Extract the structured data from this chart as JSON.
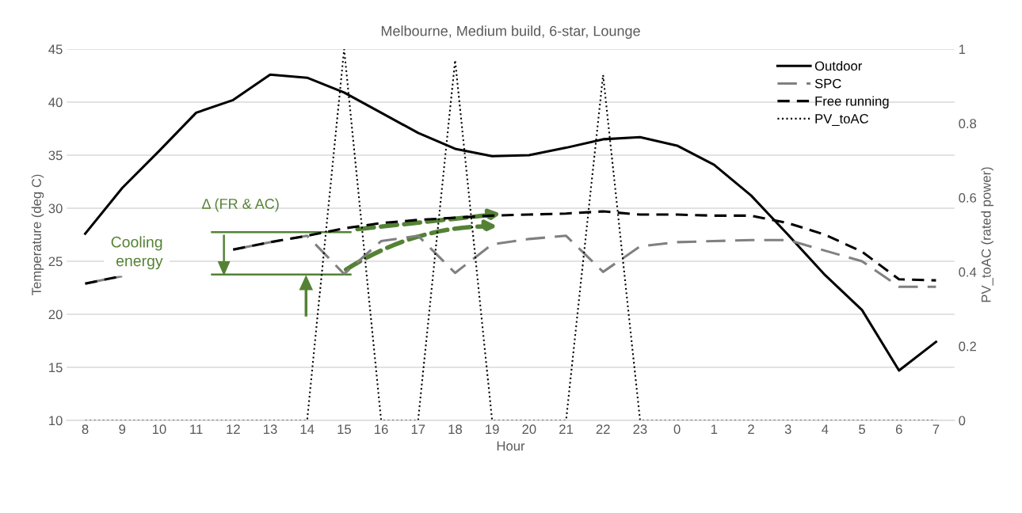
{
  "chart_data": {
    "type": "line",
    "title": "Melbourne, Medium build, 6-star, Lounge",
    "xlabel": "Hour",
    "ylabel": "Temperature (deg C)",
    "y2label": "PV_toAC (rated power)",
    "categories": [
      "8",
      "9",
      "10",
      "11",
      "12",
      "13",
      "14",
      "15",
      "16",
      "17",
      "18",
      "19",
      "20",
      "21",
      "22",
      "23",
      "0",
      "1",
      "2",
      "3",
      "4",
      "5",
      "6",
      "7"
    ],
    "series": [
      {
        "name": "Outdoor",
        "color": "#000000",
        "line_style": "solid",
        "values": [
          27.6,
          31.9,
          35.4,
          39.0,
          40.2,
          42.6,
          42.3,
          40.9,
          39.0,
          37.1,
          35.6,
          34.9,
          35.0,
          35.7,
          36.5,
          36.7,
          35.9,
          34.1,
          31.2,
          27.5,
          23.7,
          20.4,
          14.7,
          17.4
        ]
      },
      {
        "name": "SPC",
        "color": "#808080",
        "line_style": "dashed",
        "values": [
          22.9,
          23.6,
          null,
          null,
          26.1,
          26.8,
          27.4,
          23.8,
          26.9,
          27.4,
          23.9,
          26.6,
          27.1,
          27.4,
          24.0,
          26.4,
          26.8,
          26.9,
          27.0,
          27.0,
          26.0,
          25.0,
          22.6,
          22.6
        ]
      },
      {
        "name": "Free running",
        "color": "#000000",
        "line_style": "dashed",
        "values": [
          22.9,
          23.6,
          null,
          null,
          26.1,
          26.8,
          27.4,
          28.1,
          28.6,
          28.9,
          29.1,
          29.3,
          29.4,
          29.5,
          29.7,
          29.4,
          29.4,
          29.3,
          29.3,
          28.6,
          27.5,
          25.9,
          23.3,
          23.2
        ]
      },
      {
        "name": "PV_toAC",
        "color": "#000000",
        "line_style": "dotted",
        "axis": "y2",
        "values": [
          0,
          0,
          0,
          0,
          0,
          0,
          0,
          1.0,
          0,
          0,
          0.97,
          0,
          0,
          0,
          0.93,
          0,
          0,
          0,
          0,
          0,
          0,
          0,
          0,
          0
        ]
      }
    ],
    "ylim": [
      10,
      45
    ],
    "yticks": [
      10,
      15,
      20,
      25,
      30,
      35,
      40,
      45
    ],
    "y2lim": [
      0,
      1
    ],
    "y2ticks": [
      0,
      0.2,
      0.4,
      0.6,
      0.8,
      1
    ],
    "grid": "y",
    "legend": "top right",
    "marker": "none",
    "annotations": [
      "Δ (FR & AC)",
      "Cooling\nenergy"
    ]
  }
}
